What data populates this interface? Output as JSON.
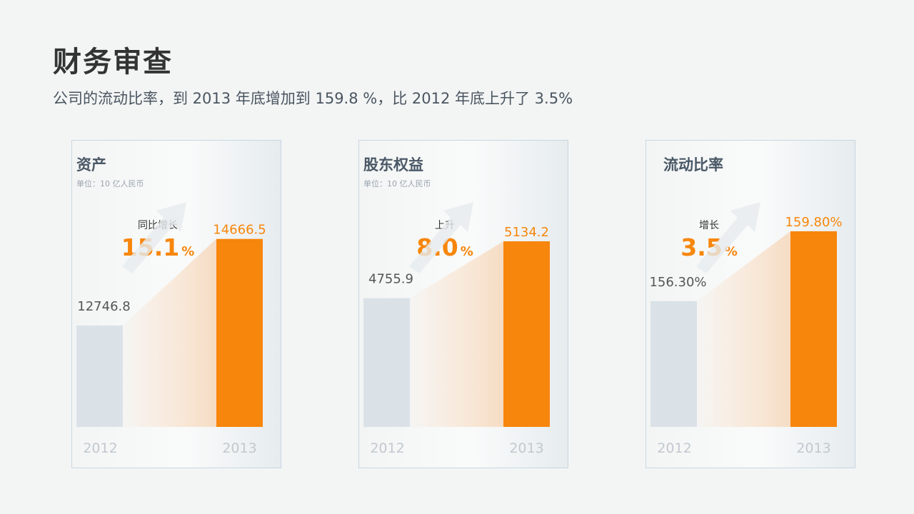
{
  "page": {
    "title": "财务审查",
    "subtitle": "公司的流动比率，到 2013 年底增加到 159.8 %，比 2012 年底上升了 3.5%"
  },
  "colors": {
    "bar_2012": "#dae2e8",
    "bar_2013": "#f7860c",
    "accent": "#f7860c",
    "muted_text": "#c1c9cf"
  },
  "chart_data": [
    {
      "type": "bar",
      "title": "资产",
      "unit": "单位：10 亿人民币",
      "categories": [
        "2012",
        "2013"
      ],
      "values": [
        12746.8,
        14666.5
      ],
      "value_labels": [
        "12746.8",
        "14666.5"
      ],
      "badge": {
        "label": "同比增长",
        "value": "15.1",
        "suffix": "%"
      }
    },
    {
      "type": "bar",
      "title": "股东权益",
      "unit": "单位：10 亿人民币",
      "categories": [
        "2012",
        "2013"
      ],
      "values": [
        4755.9,
        5134.2
      ],
      "value_labels": [
        "4755.9",
        "5134.2"
      ],
      "badge": {
        "label": "上升",
        "value": "8.0",
        "suffix": "%"
      }
    },
    {
      "type": "bar",
      "title": "流动比率",
      "unit": "",
      "categories": [
        "2012",
        "2013"
      ],
      "values": [
        156.3,
        159.8
      ],
      "value_labels": [
        "156.30%",
        "159.80%"
      ],
      "badge": {
        "label": "增长",
        "value": "3.5",
        "suffix": "%"
      }
    }
  ]
}
